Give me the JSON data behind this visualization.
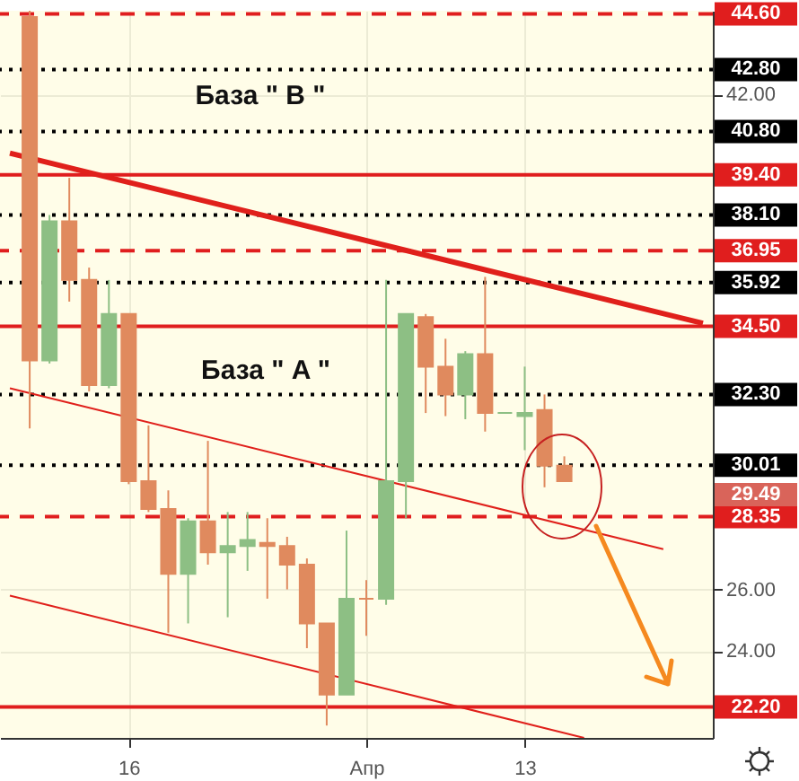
{
  "chart_data": {
    "type": "candlestick",
    "categories": [
      null,
      null,
      null,
      null,
      null,
      null,
      "16",
      null,
      null,
      null,
      null,
      null,
      null,
      null,
      null,
      null,
      null,
      null,
      "Апр",
      null,
      null,
      null,
      null,
      null,
      null,
      null,
      "13",
      null,
      null,
      null,
      null,
      null,
      null,
      null,
      null,
      null
    ],
    "ohlc": [
      null,
      [
        44.5,
        44.7,
        31.2,
        33.4
      ],
      [
        33.4,
        38.1,
        33.3,
        37.9
      ],
      [
        37.9,
        39.3,
        35.3,
        36.0
      ],
      [
        36.0,
        36.4,
        32.4,
        32.6
      ],
      [
        32.6,
        36.0,
        32.5,
        34.9
      ],
      [
        34.9,
        34.9,
        29.4,
        29.5
      ],
      [
        29.5,
        31.3,
        28.5,
        28.6
      ],
      [
        28.6,
        29.2,
        24.6,
        26.5
      ],
      [
        26.5,
        28.3,
        24.9,
        28.2
      ],
      [
        28.2,
        30.8,
        26.8,
        27.2
      ],
      [
        27.2,
        28.5,
        25.1,
        27.4
      ],
      [
        27.4,
        28.5,
        26.6,
        27.6
      ],
      [
        27.5,
        28.3,
        25.7,
        27.4
      ],
      [
        27.4,
        27.7,
        26.0,
        26.8
      ],
      [
        26.8,
        27.0,
        24.1,
        24.9
      ],
      [
        24.9,
        24.9,
        21.6,
        22.6
      ],
      [
        22.6,
        27.9,
        22.6,
        25.7
      ],
      [
        25.7,
        26.3,
        24.5,
        25.7
      ],
      [
        25.7,
        36.0,
        25.5,
        29.5
      ],
      [
        29.5,
        34.9,
        28.3,
        34.9
      ],
      [
        34.8,
        34.9,
        31.7,
        33.2
      ],
      [
        33.2,
        34.1,
        31.6,
        32.3
      ],
      [
        32.3,
        33.7,
        31.5,
        33.6
      ],
      [
        33.6,
        36.1,
        31.1,
        31.7
      ],
      [
        31.7,
        31.7,
        31.7,
        31.7
      ],
      [
        31.6,
        33.2,
        30.5,
        31.7
      ],
      [
        31.8,
        32.3,
        29.3,
        30.0
      ],
      [
        30.0,
        30.3,
        29.5,
        29.5
      ],
      null,
      null,
      null,
      null,
      null,
      null,
      null
    ],
    "colors": [
      null,
      "#e08a5e",
      "#8dbf84",
      "#e08a5e",
      "#e08a5e",
      "#8dbf84",
      "#e08a5e",
      "#e08a5e",
      "#e08a5e",
      "#8dbf84",
      "#e08a5e",
      "#8dbf84",
      "#8dbf84",
      "#e08a5e",
      "#e08a5e",
      "#e08a5e",
      "#e08a5e",
      "#8dbf84",
      "#e08a5e",
      "#8dbf84",
      "#8dbf84",
      "#e08a5e",
      "#e08a5e",
      "#8dbf84",
      "#e08a5e",
      "#8dbf84",
      "#8dbf84",
      "#e08a5e",
      "#e08a5e",
      null,
      null,
      null,
      null,
      null,
      null,
      null
    ],
    "series": [
      {
        "type": "line",
        "color": "#e0201b",
        "values": [
          40.1,
          null,
          null,
          null,
          null,
          null,
          null,
          null,
          null,
          null,
          null,
          null,
          null,
          null,
          null,
          null,
          null,
          null,
          null,
          null,
          null,
          null,
          null,
          null,
          null,
          null,
          null,
          null,
          null,
          null,
          null,
          null,
          null,
          null,
          null,
          34.6
        ]
      },
      {
        "type": "line",
        "color": "#e0201b",
        "values": [
          32.5,
          null,
          null,
          null,
          null,
          null,
          null,
          null,
          null,
          null,
          null,
          null,
          null,
          null,
          null,
          null,
          null,
          null,
          null,
          null,
          null,
          null,
          null,
          null,
          null,
          null,
          null,
          null,
          null,
          null,
          null,
          null,
          null,
          27.3,
          null,
          null
        ]
      },
      {
        "type": "line",
        "color": "#e0201b",
        "values": [
          25.8,
          null,
          null,
          null,
          null,
          null,
          null,
          null,
          null,
          null,
          null,
          null,
          null,
          null,
          null,
          null,
          null,
          null,
          null,
          null,
          null,
          null,
          null,
          null,
          null,
          null,
          null,
          null,
          null,
          21.2,
          null,
          null,
          null,
          null,
          null,
          null
        ]
      }
    ],
    "ylim": [
      21.2,
      44.7
    ],
    "yticks": [
      {
        "value": 24,
        "label": "24.00"
      },
      {
        "value": 26,
        "label": "26.00"
      },
      {
        "value": 42,
        "label": "42.00"
      }
    ],
    "grid": true,
    "ref_lines": [
      {
        "axis": "y",
        "value": 44.6,
        "label": "44.60",
        "color": "#e01e1e",
        "line_style": "dashed"
      },
      {
        "axis": "y",
        "value": 42.8,
        "label": "42.80",
        "color": "#000000",
        "line_style": "dotted"
      },
      {
        "axis": "y",
        "value": 40.8,
        "label": "40.80",
        "color": "#000000",
        "line_style": "dotted"
      },
      {
        "axis": "y",
        "value": 39.4,
        "label": "39.40",
        "color": "#e01e1e",
        "line_style": "solid"
      },
      {
        "axis": "y",
        "value": 38.1,
        "label": "38.10",
        "color": "#000000",
        "line_style": "dotted"
      },
      {
        "axis": "y",
        "value": 36.95,
        "label": "36.95",
        "color": "#e01e1e",
        "line_style": "dashed"
      },
      {
        "axis": "y",
        "value": 35.92,
        "label": "35.92",
        "color": "#000000",
        "line_style": "dotted"
      },
      {
        "axis": "y",
        "value": 34.5,
        "label": "34.50",
        "color": "#e01e1e",
        "line_style": "solid"
      },
      {
        "axis": "y",
        "value": 32.3,
        "label": "32.30",
        "color": "#000000",
        "line_style": "dotted"
      },
      {
        "axis": "y",
        "value": 30.01,
        "label": "30.01",
        "color": "#000000",
        "line_style": "dotted"
      },
      {
        "axis": "y",
        "value": 28.35,
        "label": "28.35",
        "color": "#e01e1e",
        "line_style": "dashed"
      },
      {
        "axis": "y",
        "value": 22.2,
        "label": "22.20",
        "color": "#e01e1e",
        "line_style": "solid"
      }
    ],
    "annotations": [
      "База  \" B \"",
      "База  \" A \"",
      "29.49"
    ]
  }
}
